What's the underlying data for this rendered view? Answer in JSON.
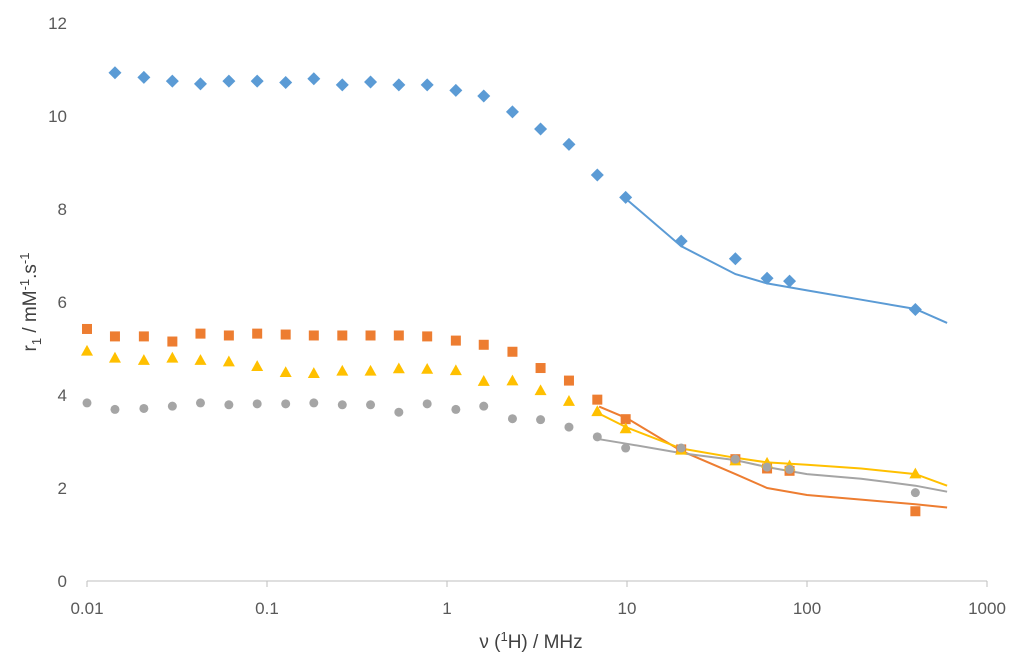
{
  "chart_data": {
    "type": "scatter",
    "xscale": "log",
    "xlim": [
      0.01,
      1000
    ],
    "ylim": [
      0,
      12
    ],
    "grid": false,
    "xticks": [
      "0.01",
      "0.1",
      "1",
      "10",
      "100",
      "1000"
    ],
    "yticks": [
      "0",
      "2",
      "4",
      "6",
      "8",
      "10",
      "12"
    ],
    "xlabel": {
      "pre": "ν (",
      "sup": "1",
      "post": "H) / MHz"
    },
    "ylabel": {
      "r": "r",
      "sub": "1",
      "mid": " / mM",
      "sup1": "-1",
      "dot": ".s",
      "sup2": "-1"
    },
    "series": [
      {
        "marker": "diamond",
        "color": "#5B9BD5",
        "x": [
          0.0143,
          0.0207,
          0.0298,
          0.0427,
          0.0614,
          0.0882,
          0.127,
          0.182,
          0.262,
          0.376,
          0.54,
          0.776,
          1.12,
          1.6,
          2.31,
          3.31,
          4.76,
          6.84,
          9.83,
          20,
          40,
          60,
          80,
          400
        ],
        "y": [
          10.93,
          10.83,
          10.75,
          10.69,
          10.75,
          10.75,
          10.72,
          10.8,
          10.67,
          10.73,
          10.67,
          10.67,
          10.55,
          10.43,
          10.09,
          9.72,
          9.39,
          8.73,
          8.25,
          7.31,
          6.93,
          6.51,
          6.45,
          5.84
        ],
        "fit": {
          "x": [
            10,
            20,
            40,
            60,
            100,
            200,
            400,
            600
          ],
          "y": [
            8.2,
            7.2,
            6.6,
            6.4,
            6.25,
            6.05,
            5.85,
            5.55
          ]
        }
      },
      {
        "marker": "square",
        "color": "#ED7D31",
        "x": [
          0.01,
          0.0143,
          0.0207,
          0.0298,
          0.0427,
          0.0614,
          0.0882,
          0.127,
          0.182,
          0.262,
          0.376,
          0.54,
          0.776,
          1.12,
          1.6,
          2.31,
          3.31,
          4.76,
          6.84,
          9.83,
          20,
          40,
          60,
          80,
          400
        ],
        "y": [
          5.42,
          5.26,
          5.26,
          5.15,
          5.32,
          5.28,
          5.32,
          5.3,
          5.28,
          5.28,
          5.28,
          5.28,
          5.26,
          5.17,
          5.08,
          4.93,
          4.58,
          4.31,
          3.9,
          3.48,
          2.83,
          2.62,
          2.42,
          2.37,
          1.5
        ],
        "fit": {
          "x": [
            7,
            10,
            20,
            40,
            60,
            100,
            200,
            400,
            600
          ],
          "y": [
            3.75,
            3.5,
            2.8,
            2.3,
            2.0,
            1.85,
            1.75,
            1.65,
            1.58
          ]
        }
      },
      {
        "marker": "triangle",
        "color": "#FFC000",
        "x": [
          0.01,
          0.0143,
          0.0207,
          0.0298,
          0.0427,
          0.0614,
          0.0882,
          0.127,
          0.182,
          0.262,
          0.376,
          0.54,
          0.776,
          1.12,
          1.6,
          2.31,
          3.31,
          4.76,
          6.84,
          9.83,
          20,
          40,
          60,
          80,
          400
        ],
        "y": [
          4.95,
          4.8,
          4.75,
          4.8,
          4.75,
          4.72,
          4.62,
          4.49,
          4.47,
          4.52,
          4.52,
          4.57,
          4.56,
          4.53,
          4.3,
          4.31,
          4.1,
          3.87,
          3.65,
          3.28,
          2.82,
          2.59,
          2.54,
          2.48,
          2.31
        ],
        "fit": {
          "x": [
            7,
            10,
            20,
            40,
            60,
            100,
            200,
            400,
            600
          ],
          "y": [
            3.6,
            3.3,
            2.85,
            2.65,
            2.55,
            2.5,
            2.42,
            2.3,
            2.05
          ]
        }
      },
      {
        "marker": "circle",
        "color": "#A5A5A5",
        "x": [
          0.01,
          0.0143,
          0.0207,
          0.0298,
          0.0427,
          0.0614,
          0.0882,
          0.127,
          0.182,
          0.262,
          0.376,
          0.54,
          0.776,
          1.12,
          1.6,
          2.31,
          3.31,
          4.76,
          6.84,
          9.83,
          20,
          40,
          60,
          80,
          400
        ],
        "y": [
          3.83,
          3.69,
          3.71,
          3.76,
          3.83,
          3.79,
          3.81,
          3.81,
          3.83,
          3.79,
          3.79,
          3.63,
          3.81,
          3.69,
          3.76,
          3.49,
          3.47,
          3.31,
          3.1,
          2.86,
          2.86,
          2.62,
          2.45,
          2.4,
          1.9
        ],
        "fit": {
          "x": [
            7,
            10,
            20,
            40,
            60,
            100,
            200,
            400,
            600
          ],
          "y": [
            3.05,
            2.95,
            2.75,
            2.6,
            2.45,
            2.3,
            2.2,
            2.05,
            1.92
          ]
        }
      }
    ]
  }
}
